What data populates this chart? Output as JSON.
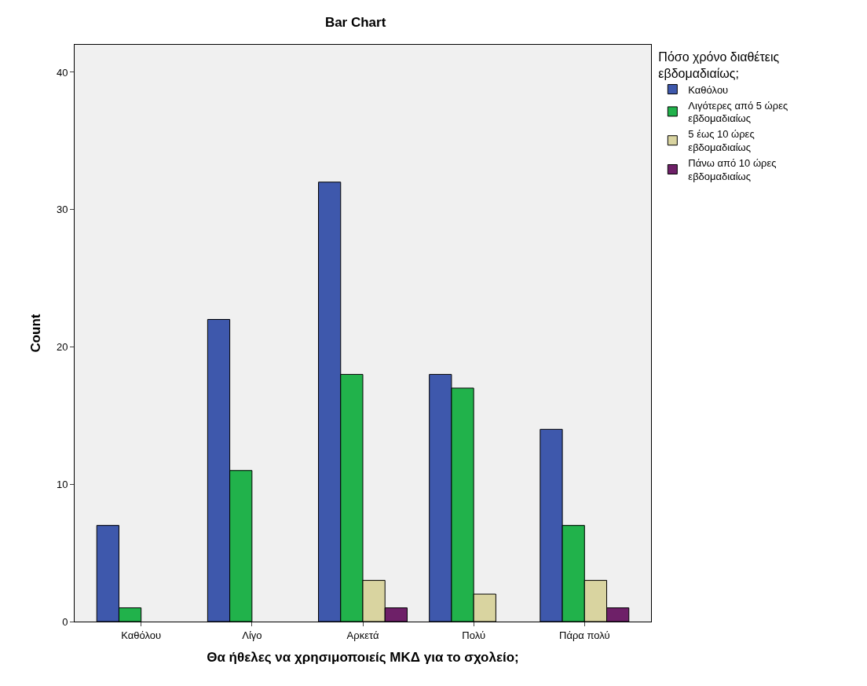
{
  "chart_data": {
    "type": "bar",
    "title": "Bar Chart",
    "xlabel": "Θα ήθελες να χρησιμοποιείς ΜΚΔ για το σχολείο;",
    "ylabel": "Count",
    "legend_title": "Πόσο χρόνο διαθέτεις εβδομαδιαίως;",
    "categories": [
      "Καθόλου",
      "Λίγο",
      "Αρκετά",
      "Πολύ",
      "Πάρα πολύ"
    ],
    "series": [
      {
        "name": "Καθόλου",
        "color": "#3e58ac",
        "values": [
          7,
          22,
          32,
          18,
          14
        ]
      },
      {
        "name": "Λιγότερες από 5 ώρες εβδομαδιαίως",
        "color": "#21b24b",
        "values": [
          1,
          11,
          18,
          17,
          7
        ]
      },
      {
        "name": "5 έως 10 ώρες εβδομαδιαίως",
        "color": "#d9d4a0",
        "values": [
          null,
          null,
          3,
          2,
          3
        ]
      },
      {
        "name": "Πάνω από 10 ώρες εβδομαδιαίως",
        "color": "#6e2068",
        "values": [
          null,
          null,
          1,
          null,
          1
        ]
      }
    ],
    "ylim": [
      0,
      42
    ],
    "yticks": [
      0,
      10,
      20,
      30,
      40
    ],
    "grid": false,
    "legend": "top right"
  }
}
